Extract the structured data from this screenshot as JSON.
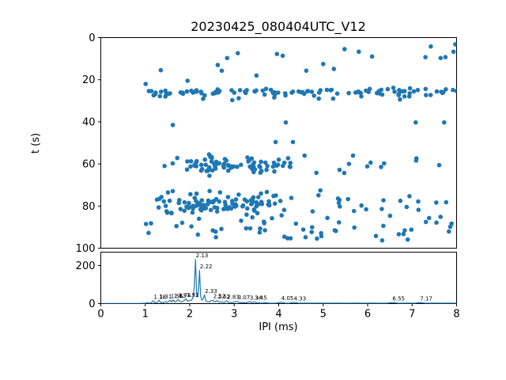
{
  "figure": {
    "title": "20230425_080404UTC_V12",
    "background": "#ffffff",
    "accent_color": "#1f77b4"
  },
  "chart_data": [
    {
      "type": "scatter",
      "title": "20230425_080404UTC_V12",
      "xlabel": "",
      "ylabel": "t (s)",
      "xlim": [
        0,
        8
      ],
      "ylim": [
        100,
        0
      ],
      "y_inverted": true,
      "yticks": [
        0,
        20,
        40,
        60,
        80,
        100
      ],
      "grid": false,
      "marker_color": "#1f77b4",
      "marker_radius_px": 2.8,
      "bands": [
        {
          "name": "band-t26",
          "t_mean": 25.9,
          "t_sd": 1.4,
          "t_min": 22.0,
          "t_max": 30.5,
          "x_min": 1.0,
          "x_max": 8.0,
          "count": 112,
          "x_bias": "uniform"
        },
        {
          "name": "band-t60",
          "t_mean": 60.6,
          "t_sd": 2.1,
          "t_min": 55.5,
          "t_max": 67.0,
          "x_min": 1.2,
          "x_max": 8.0,
          "count": 96,
          "x_bias": "left"
        },
        {
          "name": "band-t79",
          "t_mean": 79.3,
          "t_sd": 2.7,
          "t_min": 72.5,
          "t_max": 86.0,
          "x_min": 1.2,
          "x_max": 8.0,
          "count": 134,
          "x_bias": "left"
        },
        {
          "name": "band-t91",
          "t_mean": 91.0,
          "t_sd": 3.4,
          "t_min": 85.0,
          "t_max": 97.5,
          "x_min": 1.0,
          "x_max": 8.0,
          "count": 50,
          "x_bias": "uniform"
        }
      ],
      "points_extra": [
        [
          2.84,
          9.7
        ],
        [
          3.08,
          7.4
        ],
        [
          3.96,
          7.8
        ],
        [
          4.09,
          8.6
        ],
        [
          5.48,
          5.5
        ],
        [
          5.8,
          6.7
        ],
        [
          7.3,
          9.3
        ],
        [
          7.64,
          9.7
        ],
        [
          7.75,
          9.3
        ],
        [
          7.93,
          6.7
        ],
        [
          7.97,
          3.2
        ],
        [
          1.35,
          15.5
        ],
        [
          1.95,
          20.5
        ],
        [
          2.63,
          13.0
        ],
        [
          3.5,
          18.0
        ],
        [
          2.72,
          15.7
        ],
        [
          4.62,
          15.7
        ],
        [
          5.24,
          14.9
        ],
        [
          6.1,
          9.0
        ],
        [
          5.0,
          12.5
        ],
        [
          7.42,
          4.2
        ],
        [
          1.62,
          41.5
        ],
        [
          4.16,
          40.3
        ],
        [
          7.08,
          40.3
        ],
        [
          7.72,
          40.3
        ],
        [
          3.93,
          49.6
        ],
        [
          4.32,
          49.6
        ]
      ]
    },
    {
      "type": "line",
      "title": "",
      "xlabel": "IPI (ms)",
      "ylabel": "",
      "xlim": [
        0,
        8
      ],
      "ylim": [
        0,
        270
      ],
      "xticks": [
        0,
        1,
        2,
        3,
        4,
        5,
        6,
        7,
        8
      ],
      "yticks": [
        0,
        200
      ],
      "grid": false,
      "line_color": "#1f77b4",
      "series": [
        {
          "name": "IPI histogram",
          "points": [
            [
              0,
              1
            ],
            [
              0.3,
              1
            ],
            [
              0.6,
              1
            ],
            [
              0.85,
              1
            ],
            [
              1.0,
              2
            ],
            [
              1.05,
              4
            ],
            [
              1.1,
              2
            ],
            [
              1.14,
              6
            ],
            [
              1.18,
              15
            ],
            [
              1.21,
              5
            ],
            [
              1.25,
              4
            ],
            [
              1.28,
              8
            ],
            [
              1.31,
              17
            ],
            [
              1.35,
              6
            ],
            [
              1.4,
              5
            ],
            [
              1.45,
              9
            ],
            [
              1.5,
              7
            ],
            [
              1.53,
              12
            ],
            [
              1.56,
              18
            ],
            [
              1.59,
              9
            ],
            [
              1.63,
              20
            ],
            [
              1.66,
              8
            ],
            [
              1.7,
              12
            ],
            [
              1.74,
              22
            ],
            [
              1.78,
              10
            ],
            [
              1.82,
              9
            ],
            [
              1.86,
              14
            ],
            [
              1.92,
              25
            ],
            [
              1.95,
              12
            ],
            [
              2.0,
              18
            ],
            [
              2.04,
              18
            ],
            [
              2.07,
              30
            ],
            [
              2.1,
              80
            ],
            [
              2.13,
              233
            ],
            [
              2.155,
              50
            ],
            [
              2.18,
              35
            ],
            [
              2.2,
              90
            ],
            [
              2.22,
              175
            ],
            [
              2.245,
              40
            ],
            [
              2.27,
              18
            ],
            [
              2.3,
              25
            ],
            [
              2.33,
              46
            ],
            [
              2.36,
              15
            ],
            [
              2.4,
              10
            ],
            [
              2.43,
              8
            ],
            [
              2.46,
              12
            ],
            [
              2.52,
              18
            ],
            [
              2.56,
              8
            ],
            [
              2.62,
              16
            ],
            [
              2.66,
              7
            ],
            [
              2.72,
              9
            ],
            [
              2.77,
              6
            ],
            [
              2.83,
              14
            ],
            [
              2.88,
              6
            ],
            [
              2.95,
              5
            ],
            [
              3.0,
              8
            ],
            [
              3.07,
              12
            ],
            [
              3.12,
              5
            ],
            [
              3.2,
              6
            ],
            [
              3.27,
              4
            ],
            [
              3.34,
              10
            ],
            [
              3.4,
              5
            ],
            [
              3.45,
              10
            ],
            [
              3.5,
              4
            ],
            [
              3.6,
              3
            ],
            [
              3.7,
              4
            ],
            [
              3.8,
              2
            ],
            [
              3.95,
              3
            ],
            [
              4.05,
              8
            ],
            [
              4.15,
              2
            ],
            [
              4.25,
              3
            ],
            [
              4.33,
              7
            ],
            [
              4.45,
              2
            ],
            [
              4.6,
              3
            ],
            [
              4.75,
              2
            ],
            [
              4.9,
              3
            ],
            [
              5.1,
              2
            ],
            [
              5.3,
              3
            ],
            [
              5.5,
              2
            ],
            [
              5.7,
              3
            ],
            [
              5.9,
              2
            ],
            [
              6.1,
              3
            ],
            [
              6.3,
              2
            ],
            [
              6.45,
              3
            ],
            [
              6.55,
              6
            ],
            [
              6.7,
              2
            ],
            [
              6.9,
              3
            ],
            [
              7.05,
              2
            ],
            [
              7.17,
              6
            ],
            [
              7.3,
              2
            ],
            [
              7.5,
              3
            ],
            [
              7.65,
              2
            ],
            [
              7.8,
              3
            ],
            [
              8.0,
              2
            ]
          ]
        }
      ],
      "peak_labels": [
        {
          "label": "1.18",
          "x": 1.18,
          "y": 15
        },
        {
          "label": "1.31",
          "x": 1.31,
          "y": 17
        },
        {
          "label": "1.56",
          "x": 1.56,
          "y": 18
        },
        {
          "label": "1.63",
          "x": 1.63,
          "y": 20
        },
        {
          "label": "1.74",
          "x": 1.74,
          "y": 22
        },
        {
          "label": "1.92",
          "x": 1.92,
          "y": 25
        },
        {
          "label": "2.13",
          "x": 2.13,
          "y": 233
        },
        {
          "label": "2.22",
          "x": 2.22,
          "y": 175
        },
        {
          "label": "2.33",
          "x": 2.33,
          "y": 46
        },
        {
          "label": "2.52",
          "x": 2.52,
          "y": 18
        },
        {
          "label": "2.62",
          "x": 2.62,
          "y": 16
        },
        {
          "label": "2.83",
          "x": 2.83,
          "y": 14
        },
        {
          "label": "3.07",
          "x": 3.07,
          "y": 12
        },
        {
          "label": "3.34",
          "x": 3.34,
          "y": 10
        },
        {
          "label": "3.45",
          "x": 3.45,
          "y": 10
        },
        {
          "label": "4.05",
          "x": 4.05,
          "y": 8
        },
        {
          "label": "4.33",
          "x": 4.33,
          "y": 7
        },
        {
          "label": "6.55",
          "x": 6.55,
          "y": 6
        },
        {
          "label": "7.17",
          "x": 7.17,
          "y": 6
        }
      ]
    }
  ]
}
